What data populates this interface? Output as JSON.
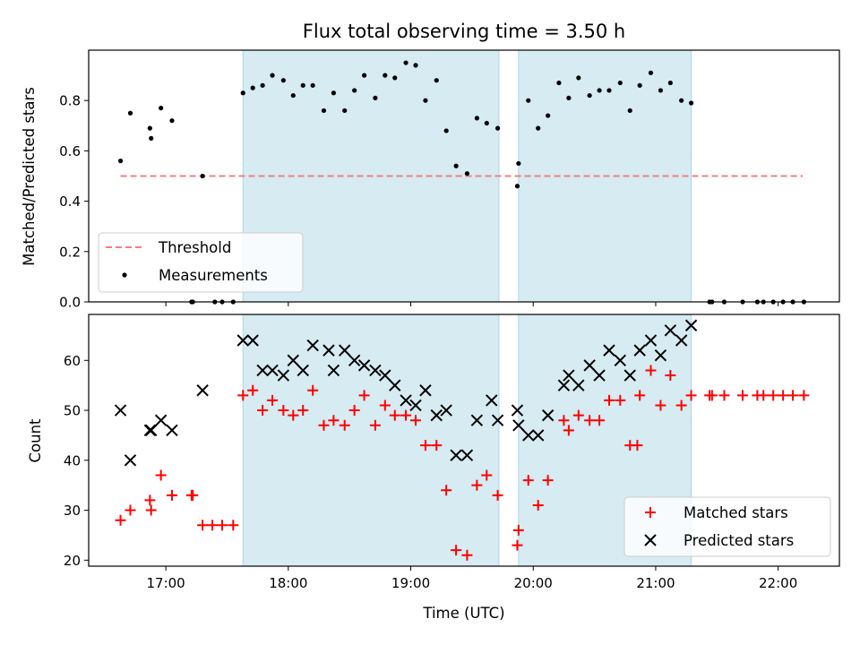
{
  "chart_data": [
    {
      "type": "scatter",
      "title": "Flux total observing time = 3.50 h",
      "ylabel": "Matched/Predicted stars",
      "xlabel": "",
      "x_unit": "hours UTC",
      "xlim": [
        16.37,
        22.5
      ],
      "ylim": [
        0.0,
        1.0
      ],
      "yticks": [
        0.0,
        0.2,
        0.4,
        0.6,
        0.8
      ],
      "ytick_labels": [
        "0.0",
        "0.2",
        "0.4",
        "0.6",
        "0.8"
      ],
      "shaded_intervals": [
        [
          17.63,
          19.72
        ],
        [
          19.88,
          21.29
        ]
      ],
      "shade_color": "#add8e6",
      "legend_position": "lower-left",
      "series": [
        {
          "name": "Threshold",
          "kind": "dashed-line",
          "color": "#f08080",
          "x": [
            16.63,
            22.2
          ],
          "y": [
            0.5,
            0.5
          ]
        },
        {
          "name": "Measurements",
          "kind": "points",
          "color": "#000000",
          "x": [
            16.63,
            16.71,
            16.87,
            16.88,
            16.96,
            17.05,
            17.21,
            17.22,
            17.3,
            17.4,
            17.46,
            17.55,
            17.63,
            17.71,
            17.79,
            17.87,
            17.96,
            18.04,
            18.12,
            18.2,
            18.29,
            18.37,
            18.46,
            18.54,
            18.62,
            18.71,
            18.79,
            18.87,
            18.96,
            19.04,
            19.12,
            19.21,
            19.29,
            19.37,
            19.46,
            19.54,
            19.62,
            19.71,
            19.87,
            19.88,
            19.96,
            20.04,
            20.12,
            20.21,
            20.29,
            20.37,
            20.46,
            20.54,
            20.62,
            20.71,
            20.79,
            20.87,
            20.96,
            21.04,
            21.12,
            21.21,
            21.29,
            21.44,
            21.46,
            21.56,
            21.71,
            21.83,
            21.88,
            21.96,
            22.04,
            22.12,
            22.21
          ],
          "y": [
            0.56,
            0.75,
            0.69,
            0.65,
            0.77,
            0.72,
            0.0,
            0.0,
            0.5,
            0.0,
            0.0,
            0.0,
            0.83,
            0.85,
            0.86,
            0.9,
            0.88,
            0.82,
            0.86,
            0.86,
            0.76,
            0.83,
            0.76,
            0.84,
            0.9,
            0.81,
            0.9,
            0.89,
            0.95,
            0.94,
            0.8,
            0.88,
            0.68,
            0.54,
            0.51,
            0.73,
            0.71,
            0.69,
            0.46,
            0.55,
            0.8,
            0.69,
            0.74,
            0.87,
            0.81,
            0.89,
            0.82,
            0.84,
            0.84,
            0.87,
            0.76,
            0.86,
            0.91,
            0.84,
            0.87,
            0.8,
            0.79,
            0.0,
            0.0,
            0.0,
            0.0,
            0.0,
            0.0,
            0.0,
            0.0,
            0.0,
            0.0
          ]
        }
      ]
    },
    {
      "type": "scatter",
      "title": "",
      "ylabel": "Count",
      "xlabel": "Time (UTC)",
      "x_unit": "hours UTC",
      "xlim": [
        16.37,
        22.5
      ],
      "ylim": [
        18.8,
        69.2
      ],
      "yticks": [
        20,
        30,
        40,
        50,
        60
      ],
      "ytick_labels": [
        "20",
        "30",
        "40",
        "50",
        "60"
      ],
      "xticks": [
        17,
        18,
        19,
        20,
        21,
        22
      ],
      "xtick_labels": [
        "17:00",
        "18:00",
        "19:00",
        "20:00",
        "21:00",
        "22:00"
      ],
      "shaded_intervals": [
        [
          17.63,
          19.72
        ],
        [
          19.88,
          21.29
        ]
      ],
      "shade_color": "#add8e6",
      "legend_position": "lower-right",
      "series": [
        {
          "name": "Matched stars",
          "marker": "plus",
          "color": "#ff0000",
          "x": [
            16.63,
            16.71,
            16.87,
            16.88,
            16.96,
            17.05,
            17.21,
            17.22,
            17.3,
            17.38,
            17.46,
            17.55,
            17.63,
            17.71,
            17.79,
            17.87,
            17.96,
            18.04,
            18.12,
            18.2,
            18.29,
            18.37,
            18.46,
            18.54,
            18.62,
            18.71,
            18.79,
            18.87,
            18.96,
            19.04,
            19.12,
            19.21,
            19.29,
            19.37,
            19.46,
            19.54,
            19.62,
            19.71,
            19.87,
            19.88,
            19.96,
            20.04,
            20.12,
            20.25,
            20.29,
            20.37,
            20.46,
            20.54,
            20.62,
            20.71,
            20.79,
            20.85,
            20.87,
            20.96,
            21.04,
            21.12,
            21.21,
            21.29,
            21.44,
            21.46,
            21.56,
            21.71,
            21.83,
            21.88,
            21.96,
            22.04,
            22.12,
            22.21
          ],
          "y": [
            28,
            30,
            32,
            30,
            37,
            33,
            33,
            33,
            27,
            27,
            27,
            27,
            53,
            54,
            50,
            52,
            50,
            49,
            50,
            54,
            47,
            48,
            47,
            50,
            53,
            47,
            51,
            49,
            49,
            48,
            43,
            43,
            34,
            22,
            21,
            35,
            37,
            33,
            23,
            26,
            36,
            31,
            36,
            48,
            46,
            49,
            48,
            48,
            52,
            52,
            43,
            43,
            53,
            58,
            51,
            57,
            51,
            53,
            53,
            53,
            53,
            53,
            53,
            53,
            53,
            53,
            53,
            53
          ]
        },
        {
          "name": "Predicted stars",
          "marker": "x",
          "color": "#000000",
          "x": [
            16.63,
            16.71,
            16.87,
            16.88,
            16.96,
            17.05,
            17.3,
            17.63,
            17.71,
            17.79,
            17.87,
            17.96,
            18.04,
            18.12,
            18.2,
            18.33,
            18.37,
            18.46,
            18.54,
            18.62,
            18.71,
            18.79,
            18.87,
            18.96,
            19.04,
            19.12,
            19.21,
            19.29,
            19.37,
            19.46,
            19.54,
            19.66,
            19.71,
            19.87,
            19.88,
            19.96,
            20.04,
            20.12,
            20.25,
            20.29,
            20.37,
            20.46,
            20.54,
            20.62,
            20.71,
            20.79,
            20.87,
            20.96,
            21.04,
            21.12,
            21.21,
            21.29
          ],
          "y": [
            50,
            40,
            46,
            46,
            48,
            46,
            54,
            64,
            64,
            58,
            58,
            57,
            60,
            58,
            63,
            62,
            58,
            62,
            60,
            59,
            58,
            57,
            55,
            52,
            51,
            54,
            49,
            50,
            41,
            41,
            48,
            52,
            48,
            50,
            47,
            45,
            45,
            49,
            55,
            57,
            55,
            59,
            57,
            62,
            60,
            57,
            62,
            64,
            61,
            66,
            64,
            67
          ]
        }
      ]
    }
  ]
}
